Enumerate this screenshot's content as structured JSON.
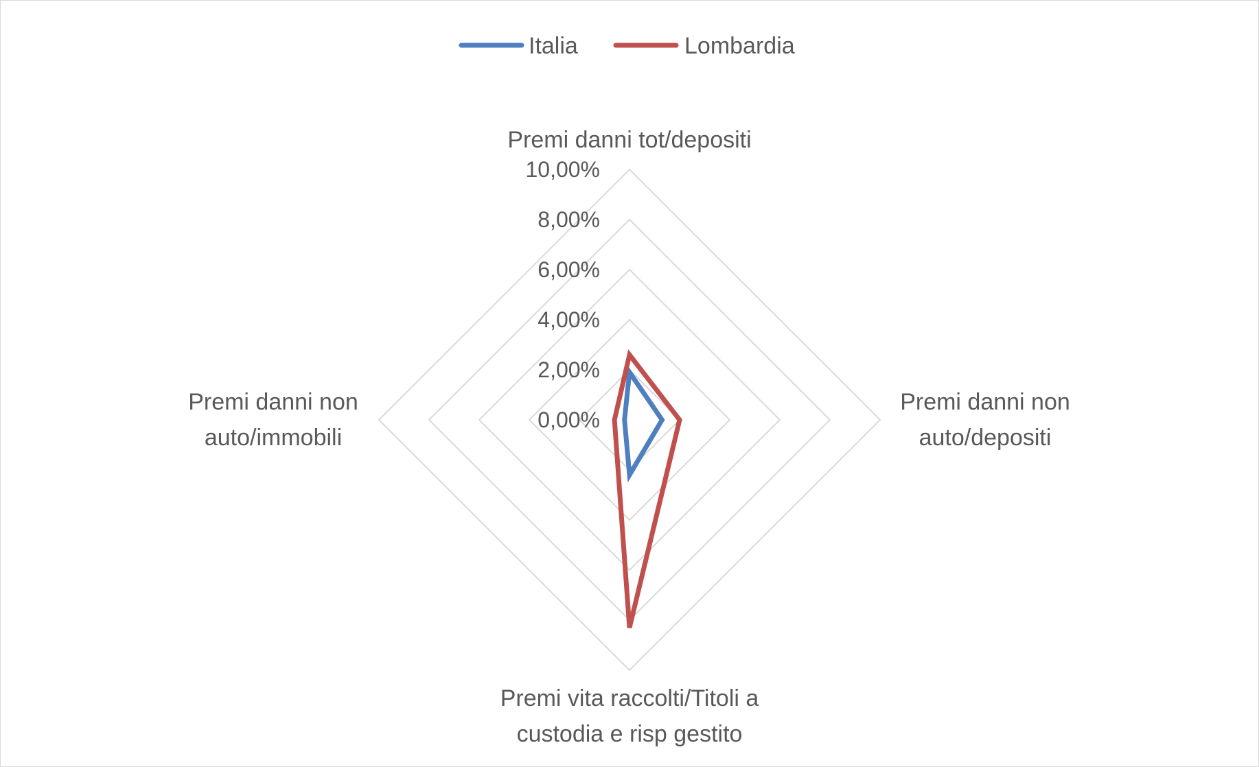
{
  "chart_data": {
    "type": "radar",
    "axes": [
      [
        "Premi danni tot/depositi"
      ],
      [
        "Premi danni non",
        "auto/depositi"
      ],
      [
        "Premi vita raccolti/Titoli a",
        "custodia e risp gestito"
      ],
      [
        "Premi danni non",
        "auto/immobili"
      ]
    ],
    "ticks": [
      "0,00%",
      "2,00%",
      "4,00%",
      "6,00%",
      "8,00%",
      "10,00%"
    ],
    "range": [
      0,
      10
    ],
    "grid": true,
    "legend_position": "top",
    "series": [
      {
        "name": "Italia",
        "color": "#4f7fbf",
        "values": [
          1.9,
          1.3,
          2.2,
          0.2
        ]
      },
      {
        "name": "Lombardia",
        "color": "#c0504d",
        "values": [
          2.6,
          2.0,
          8.3,
          0.6
        ]
      }
    ]
  }
}
